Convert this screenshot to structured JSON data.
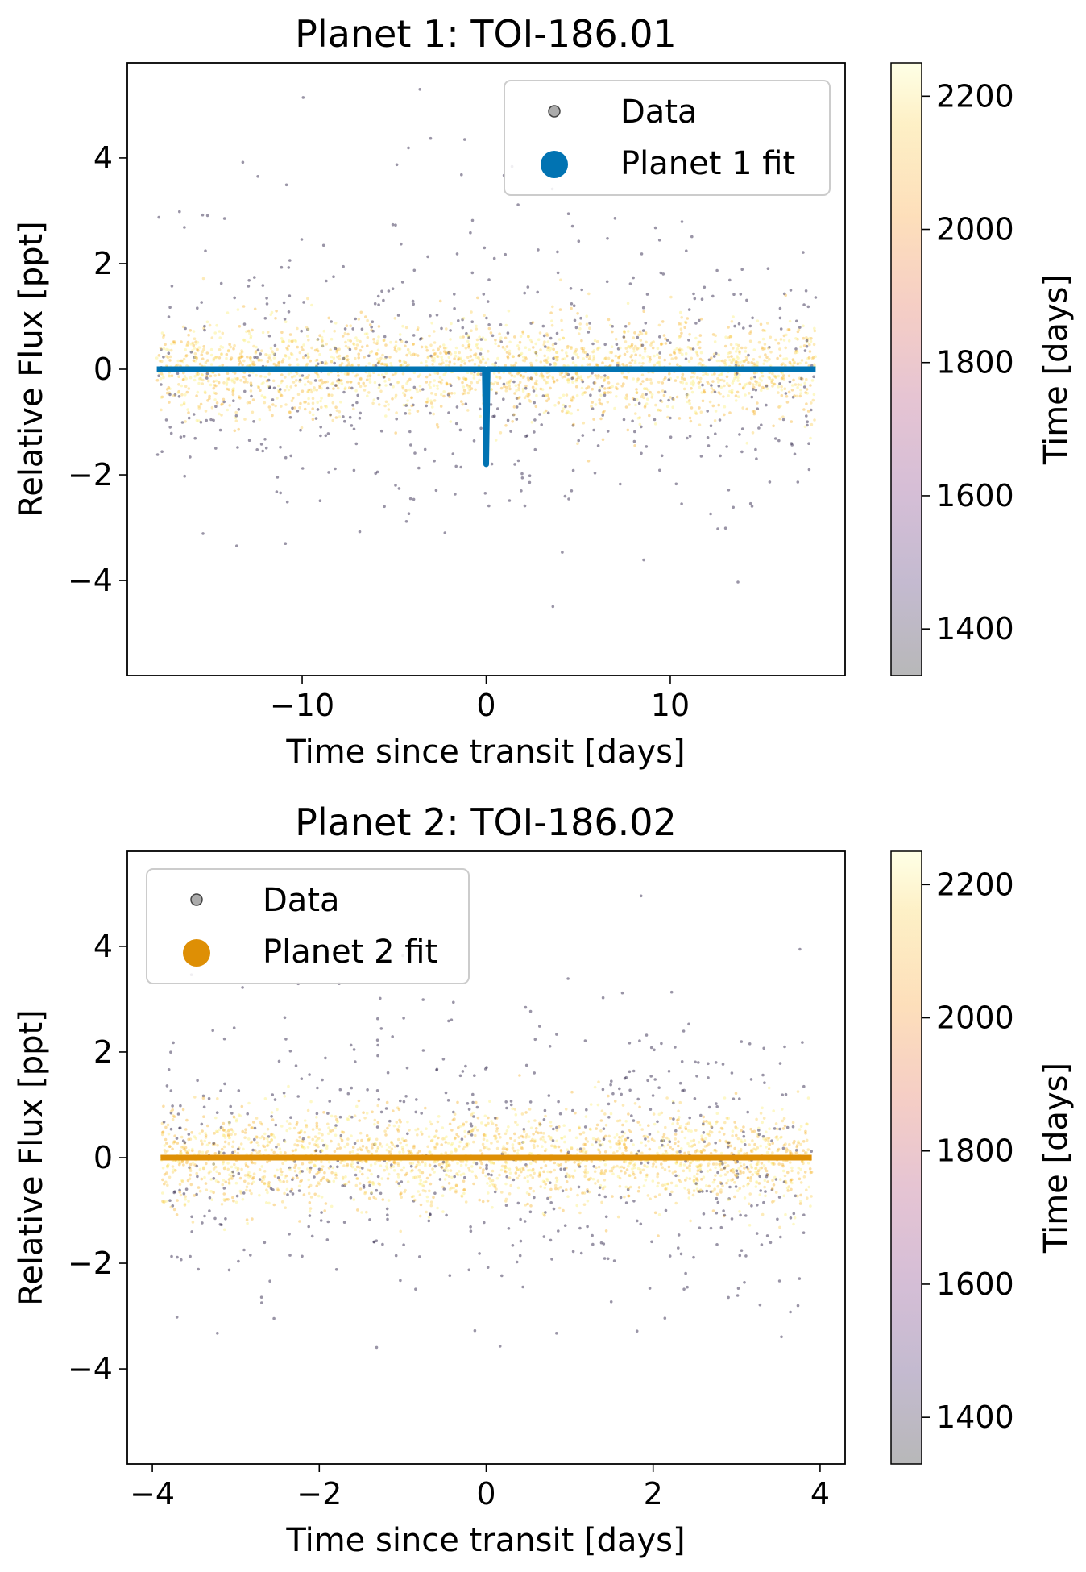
{
  "colorbar": {
    "label": "Time [days]",
    "range": [
      1330,
      2250
    ],
    "colormap": "inferno_r",
    "ticks": [
      1400,
      1600,
      1800,
      2000,
      2200
    ],
    "alpha": 0.3
  },
  "legend_data_label": "Data",
  "chart_data": [
    {
      "type": "scatter",
      "title": "Planet 1: TOI-186.01",
      "xlabel": "Time since transit [days]",
      "ylabel": "Relative Flux [ppt]",
      "xlim": [
        -19.5,
        19.5
      ],
      "ylim": [
        -5.8,
        5.8
      ],
      "xticks": [
        -10,
        0,
        10
      ],
      "yticks": [
        -4,
        -2,
        0,
        2,
        4
      ],
      "legend_position": "top-right",
      "fit_color": "#0173b2",
      "series": [
        {
          "name": "Data",
          "values": "scatter of phase-folded flux, colored by time"
        },
        {
          "name": "Planet 1 fit",
          "x": [
            -17.9,
            -0.08,
            0.0,
            0.08,
            17.9
          ],
          "y": [
            0.0,
            0.0,
            -1.8,
            0.0,
            0.0
          ]
        }
      ]
    },
    {
      "type": "scatter",
      "title": "Planet 2: TOI-186.02",
      "xlabel": "Time since transit [days]",
      "ylabel": "Relative Flux [ppt]",
      "xlim": [
        -4.3,
        4.3
      ],
      "ylim": [
        -5.8,
        5.8
      ],
      "xticks": [
        -4,
        -2,
        0,
        2,
        4
      ],
      "yticks": [
        -4,
        -2,
        0,
        2,
        4
      ],
      "legend_position": "top-left",
      "fit_color": "#de8f05",
      "series": [
        {
          "name": "Data",
          "values": "scatter of phase-folded flux, colored by time"
        },
        {
          "name": "Planet 2 fit",
          "x": [
            -3.9,
            3.9
          ],
          "y": [
            0.0,
            0.0
          ]
        }
      ]
    }
  ]
}
